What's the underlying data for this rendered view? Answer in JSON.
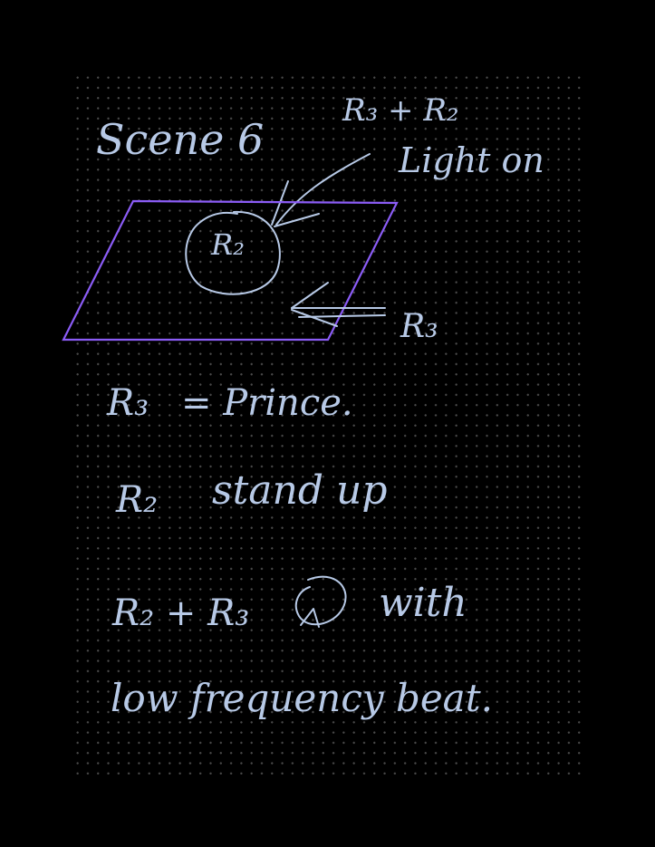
{
  "title": "Scene 6",
  "annotations": {
    "top_right_line1": "R₃ + R₂",
    "top_right_line2": "Light on",
    "circle_label": "R₂",
    "arrow_label": "R₃"
  },
  "notes": [
    {
      "subject": "R₃",
      "text": "= Prince."
    },
    {
      "subject": "R₂",
      "text": "stand up"
    },
    {
      "subject": "R₂ + R₃",
      "text": "with"
    },
    {
      "subject": "",
      "text": "low frequency beat."
    }
  ],
  "colors": {
    "background": "#000000",
    "ink": "#b7c9e6",
    "stage": "#8b5cf6",
    "grid_dot": "#4a4a4a"
  },
  "icons": {
    "rotate": "rotate-loop-icon"
  }
}
